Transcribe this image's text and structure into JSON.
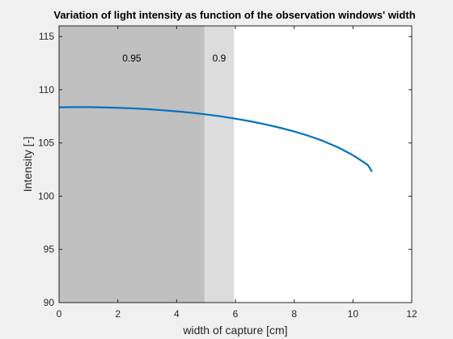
{
  "chart_data": {
    "type": "line",
    "title": "Variation of light intensity as function of the observation windows' width",
    "xlabel": "width of capture [cm]",
    "ylabel": "Intensity [-]",
    "xlim": [
      0,
      12
    ],
    "ylim": [
      90,
      116
    ],
    "xticks": [
      0,
      2,
      4,
      6,
      8,
      10,
      12
    ],
    "yticks": [
      90,
      95,
      100,
      105,
      110,
      115
    ],
    "grid": false,
    "regions": [
      {
        "label": "0.95",
        "x_start": 0,
        "x_end": 4.95,
        "color": "#c0c0c0"
      },
      {
        "label": "0.9",
        "x_start": 4.95,
        "x_end": 5.95,
        "color": "#dcdcdc"
      }
    ],
    "series": [
      {
        "color": "#0072bd",
        "x": [
          0,
          0.5,
          1,
          1.5,
          2,
          2.5,
          3,
          3.5,
          4,
          4.5,
          5,
          5.5,
          6,
          6.5,
          7,
          7.5,
          8,
          8.5,
          9,
          9.5,
          10,
          10.5,
          10.65
        ],
        "y": [
          108.35,
          108.37,
          108.37,
          108.34,
          108.3,
          108.25,
          108.18,
          108.08,
          107.97,
          107.84,
          107.68,
          107.5,
          107.28,
          107.04,
          106.76,
          106.44,
          106.08,
          105.66,
          105.17,
          104.58,
          103.85,
          102.95,
          102.3
        ]
      }
    ]
  }
}
